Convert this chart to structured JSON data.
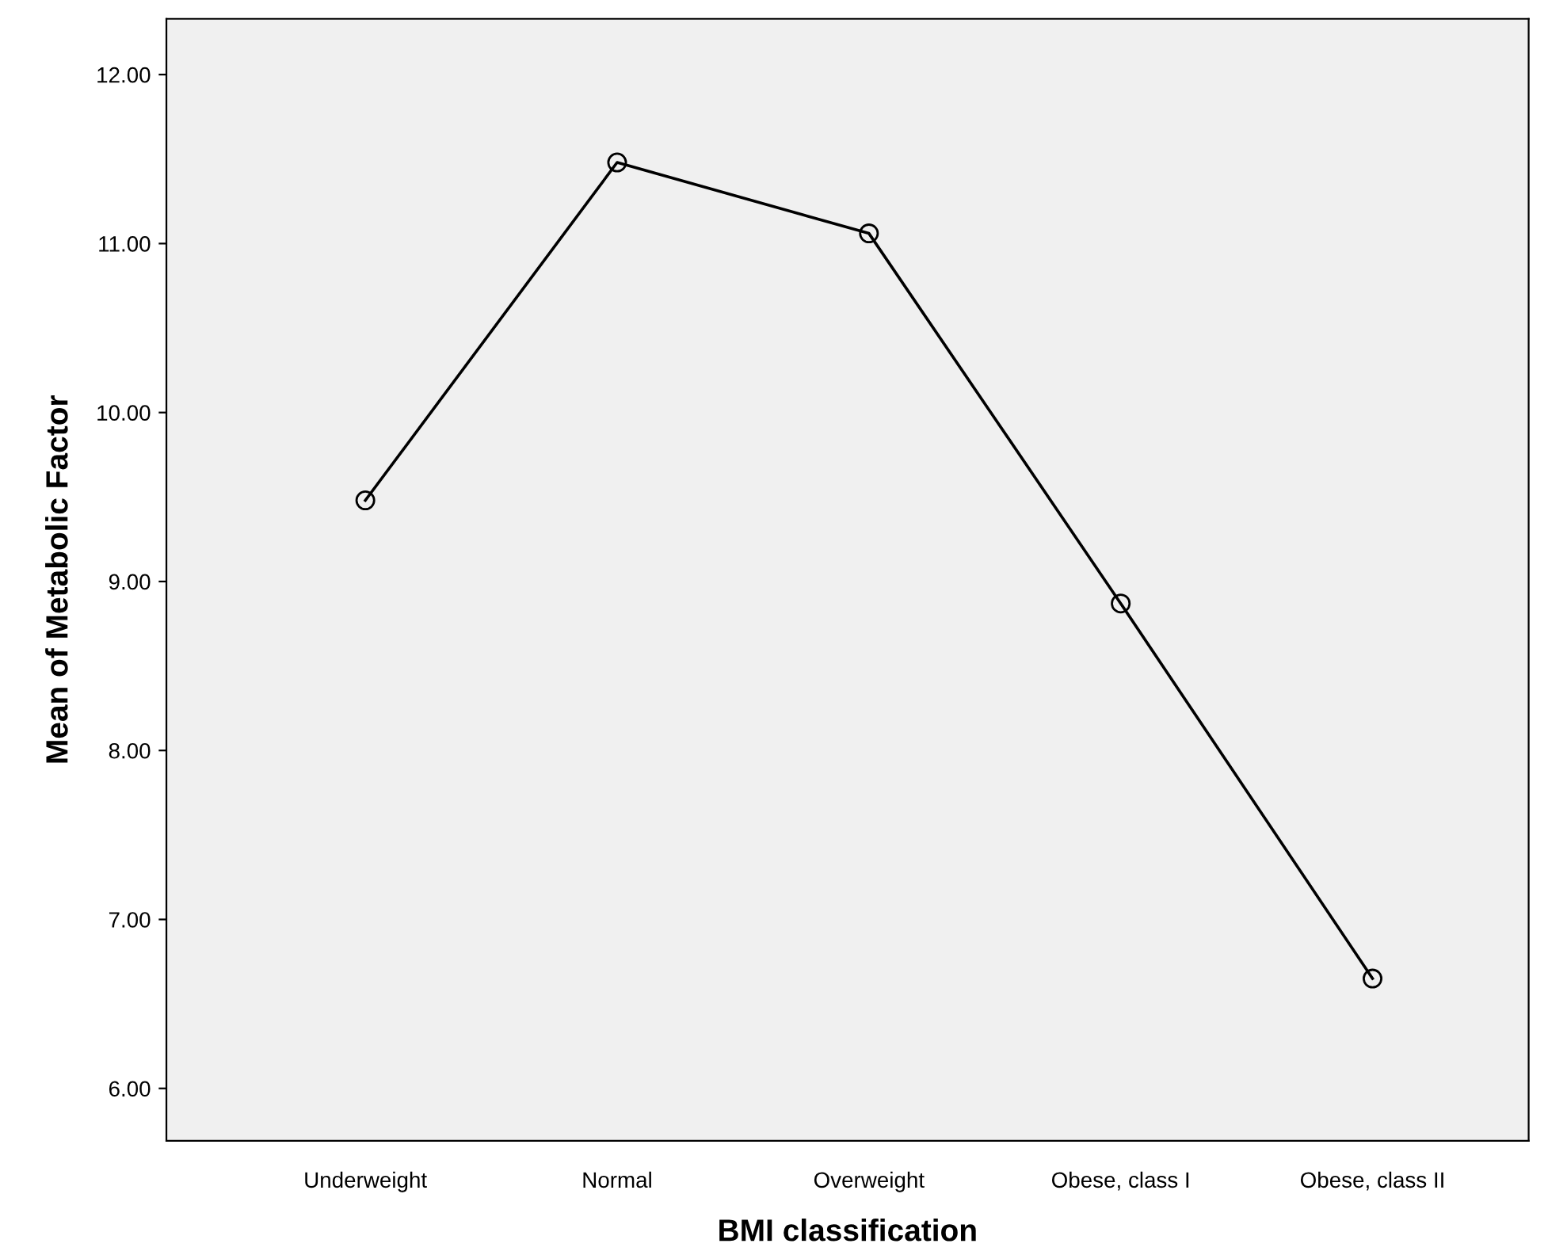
{
  "chart_data": {
    "type": "line",
    "xlabel": "BMI classification",
    "ylabel": "Mean of Metabolic Factor",
    "categories": [
      "Underweight",
      "Normal",
      "Overweight",
      "Obese, class I",
      "Obese, class II"
    ],
    "series": [
      {
        "color": "#000000",
        "values": [
          9.48,
          11.48,
          11.06,
          8.87,
          6.65
        ]
      }
    ],
    "ylim": [
      5.69,
      12.33
    ],
    "yticks": [
      {
        "value": 6,
        "label": "6.00"
      },
      {
        "value": 7,
        "label": "7.00"
      },
      {
        "value": 8,
        "label": "8.00"
      },
      {
        "value": 9,
        "label": "9.00"
      },
      {
        "value": 10,
        "label": "10.00"
      },
      {
        "value": 11,
        "label": "11.00"
      },
      {
        "value": 12,
        "label": "12.00"
      }
    ],
    "grid": false,
    "legend": false,
    "marker": "circle",
    "line_style": "solid"
  }
}
